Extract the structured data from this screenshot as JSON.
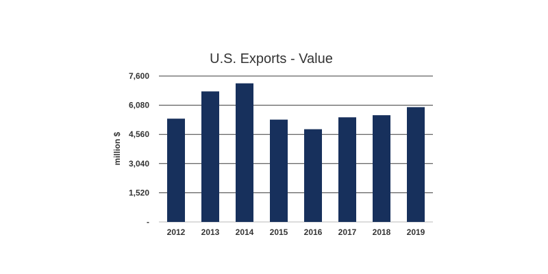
{
  "colors": {
    "bar": "#17305c",
    "gridline": "#3a3a3a",
    "baseline": "#c8c8c8",
    "text": "#333333"
  },
  "chart_data": {
    "type": "bar",
    "title": "U.S. Exports - Value",
    "xlabel": "",
    "ylabel": "million $",
    "categories": [
      "2012",
      "2013",
      "2014",
      "2015",
      "2016",
      "2017",
      "2018",
      "2019"
    ],
    "values": [
      5380,
      6800,
      7220,
      5330,
      4830,
      5450,
      5560,
      5980
    ],
    "ylim": [
      0,
      7600
    ],
    "yticks": [
      0,
      1520,
      3040,
      4560,
      6080,
      7600
    ],
    "ytick_labels": [
      "-",
      "1,520",
      "3,040",
      "4,560",
      "6,080",
      "7,600"
    ],
    "grid": true,
    "legend": "none"
  }
}
